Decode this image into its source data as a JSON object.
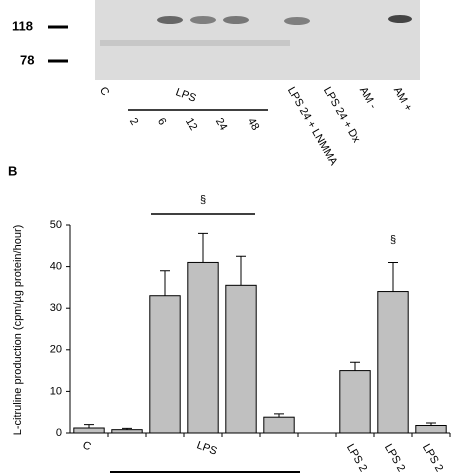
{
  "blot": {
    "markers": [
      118,
      78
    ],
    "lanes": [
      "C",
      "LPS 24 + LNMMA",
      "LPS 24 + Dx",
      "AM -",
      "AM +"
    ],
    "group_label": "LPS",
    "times": [
      2,
      6,
      12,
      24,
      48
    ]
  },
  "panel_label": "B",
  "chart_data": {
    "type": "bar",
    "y_label": "L-citruline production (cpm/µg protein/hour)",
    "categories": [
      "C",
      null,
      null,
      "LPS",
      null,
      null,
      null,
      "LPS 2",
      "LPS 2",
      "LPS 2"
    ],
    "values": [
      1.2,
      0.8,
      33,
      41,
      35.5,
      3.8,
      0,
      15,
      34,
      1.8
    ],
    "errors": [
      0.8,
      0.3,
      6,
      7,
      7,
      0.8,
      0,
      2,
      7,
      0.6
    ],
    "color": "#c0c0c0",
    "annotations": [
      "§",
      "§"
    ],
    "ylim": [
      0,
      50
    ],
    "yticks": [
      0,
      10,
      20,
      30,
      40,
      50
    ]
  }
}
